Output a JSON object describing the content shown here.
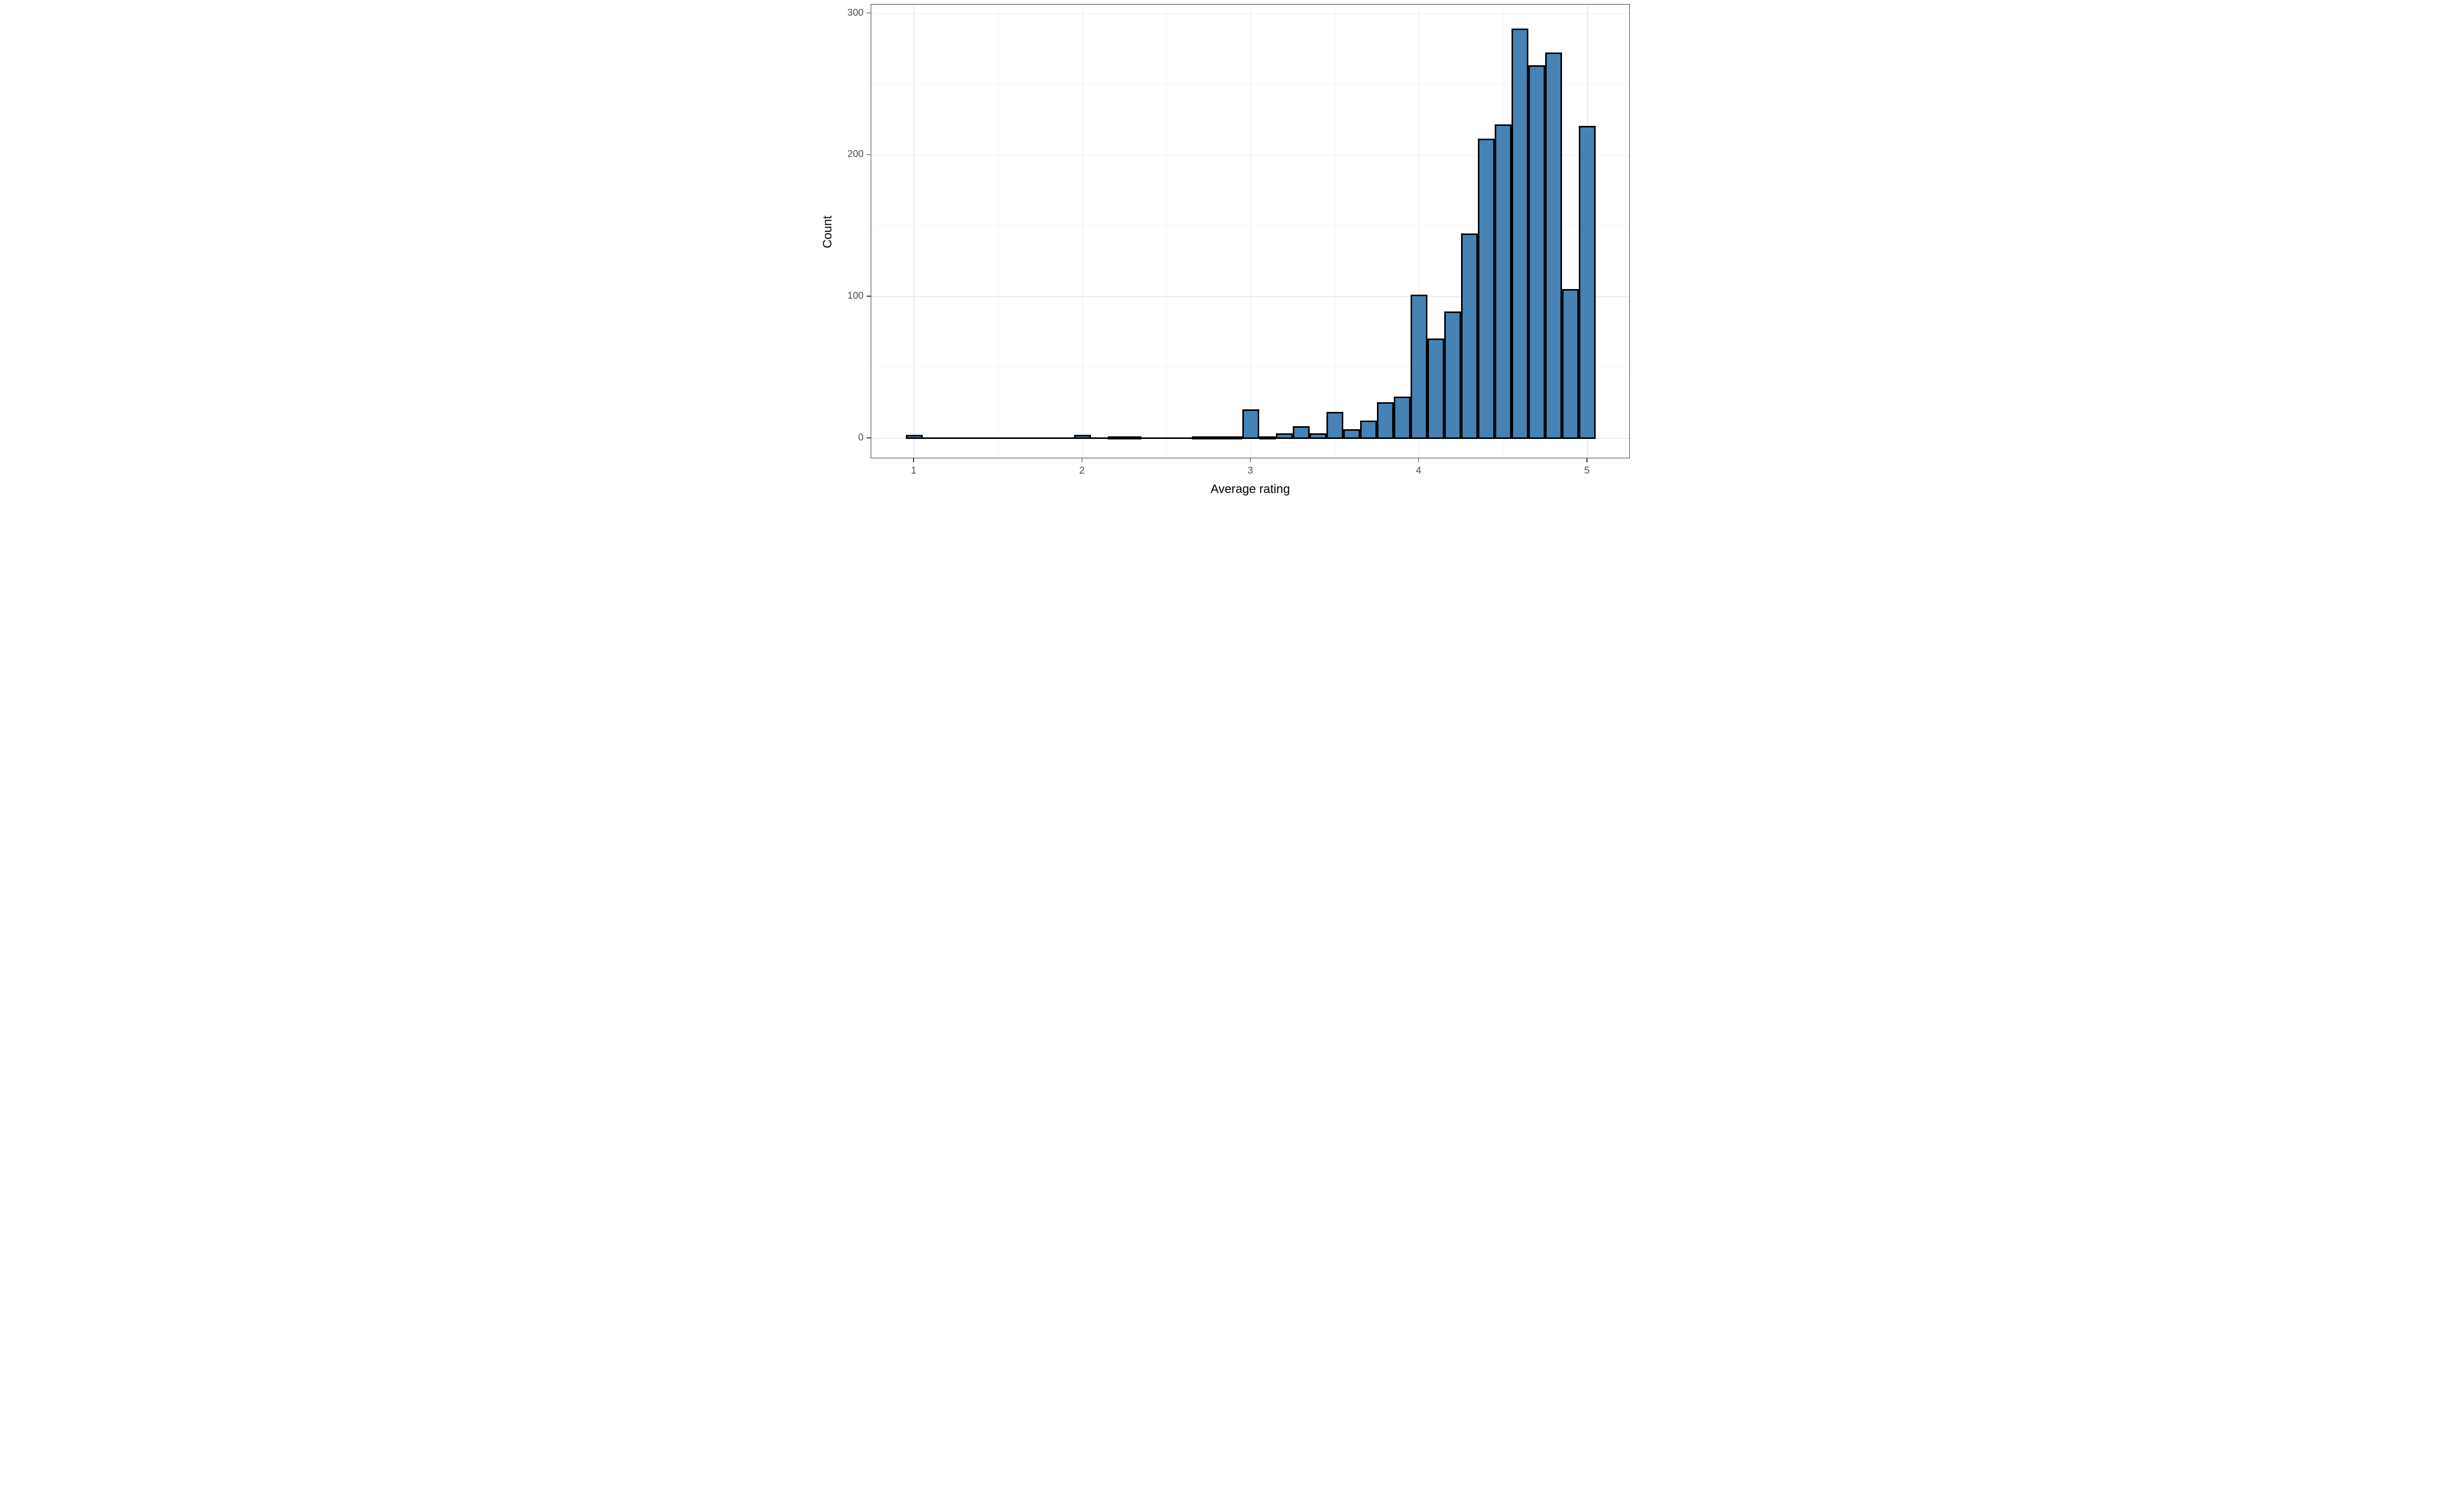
{
  "chart_data": {
    "type": "bar",
    "subtype": "histogram",
    "title": "",
    "xlabel": "Average rating",
    "ylabel": "Count",
    "bin_start": 0.95,
    "bin_width": 0.1,
    "bin_centers": [
      1.0,
      1.1,
      1.2,
      1.3,
      1.4,
      1.5,
      1.6,
      1.7,
      1.8,
      1.9,
      2.0,
      2.1,
      2.2,
      2.3,
      2.4,
      2.5,
      2.6,
      2.7,
      2.8,
      2.9,
      3.0,
      3.1,
      3.2,
      3.3,
      3.4,
      3.5,
      3.6,
      3.7,
      3.8,
      3.9,
      4.0,
      4.1,
      4.2,
      4.3,
      4.4,
      4.5,
      4.6,
      4.7,
      4.8,
      4.9,
      5.0
    ],
    "counts": [
      2,
      0,
      0,
      0,
      0,
      0,
      0,
      0,
      0,
      0,
      2,
      0,
      1,
      1,
      0,
      0,
      0,
      1,
      1,
      1,
      20,
      1,
      3,
      8,
      3,
      18,
      6,
      12,
      25,
      29,
      101,
      70,
      89,
      144,
      211,
      221,
      289,
      263,
      272,
      105,
      220
    ],
    "x_ticks": [
      1,
      2,
      3,
      4,
      5
    ],
    "x_minor_gridlines": [
      1.5,
      2.5,
      3.5,
      4.5
    ],
    "y_ticks": [
      0,
      100,
      200,
      300
    ],
    "y_minor_gridlines": [
      50,
      150,
      250
    ],
    "xlim": [
      0.745,
      5.255
    ],
    "ylim": [
      -14.4,
      306.3
    ],
    "grid": "on",
    "legend": "none",
    "bar_fill": "#4682B4",
    "bar_stroke": "#000000",
    "grid_major_color": "#EBEBEB",
    "grid_minor_color": "#F3F3F3",
    "panel_border_color": "#333333",
    "tick_color": "#333333",
    "tick_label_color": "#4D4D4D",
    "axis_title_color": "#000000",
    "background_color": "#FFFFFF"
  }
}
